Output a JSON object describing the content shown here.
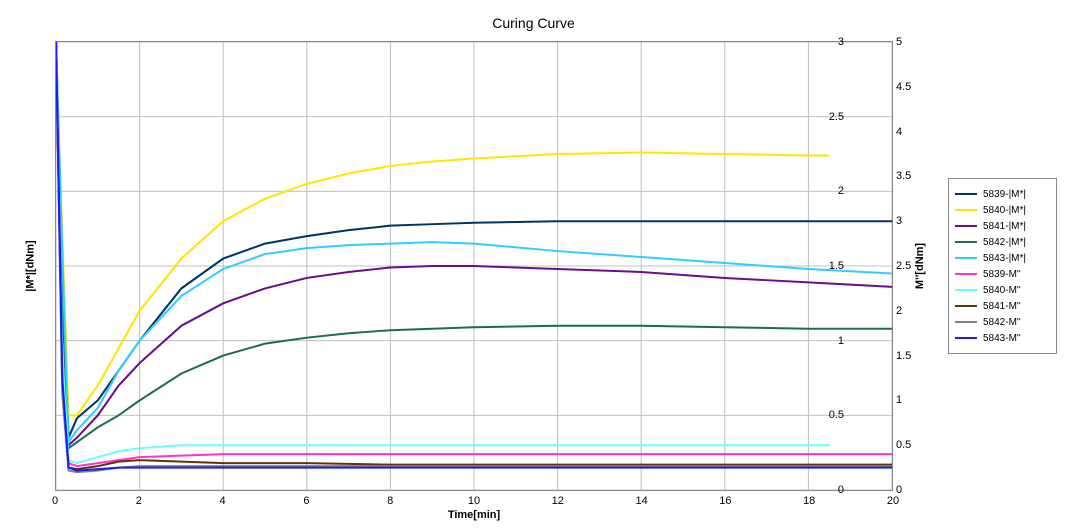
{
  "chart": {
    "type": "line",
    "title": "Curing Curve",
    "title_fontsize": 14,
    "background_color": "#ffffff",
    "grid_color": "#c0c0c0",
    "border_color": "#888888",
    "x_axis": {
      "label": "Time[min]",
      "min": 0,
      "max": 20,
      "ticks": [
        0,
        2,
        4,
        6,
        8,
        10,
        12,
        14,
        16,
        18,
        20
      ],
      "label_fontsize": 11
    },
    "y_axis_left": {
      "label": "|M*|[dNm]",
      "min": 0,
      "max": 3,
      "ticks": [
        0,
        0.5,
        1,
        1.5,
        2,
        2.5,
        3
      ],
      "label_fontsize": 11
    },
    "y_axis_right": {
      "label": "M''[dNm]",
      "min": 0,
      "max": 5,
      "ticks": [
        0,
        0.5,
        1,
        1.5,
        2,
        2.5,
        3,
        3.5,
        4,
        4.5,
        5
      ],
      "label_fontsize": 11
    },
    "legend_position": "right",
    "series": [
      {
        "name": "5839-|M*|",
        "color": "#003366",
        "axis": "left",
        "line_width": 2,
        "data": [
          [
            0,
            3
          ],
          [
            0.15,
            1.5
          ],
          [
            0.3,
            0.35
          ],
          [
            0.5,
            0.48
          ],
          [
            1,
            0.6
          ],
          [
            1.5,
            0.8
          ],
          [
            2,
            1.0
          ],
          [
            3,
            1.35
          ],
          [
            4,
            1.55
          ],
          [
            5,
            1.65
          ],
          [
            6,
            1.7
          ],
          [
            7,
            1.74
          ],
          [
            8,
            1.77
          ],
          [
            9,
            1.78
          ],
          [
            10,
            1.79
          ],
          [
            12,
            1.8
          ],
          [
            14,
            1.8
          ],
          [
            16,
            1.8
          ],
          [
            18,
            1.8
          ],
          [
            20,
            1.8
          ]
        ]
      },
      {
        "name": "5840-|M*|",
        "color": "#ffe600",
        "axis": "left",
        "line_width": 2,
        "data": [
          [
            0,
            3
          ],
          [
            0.15,
            1.7
          ],
          [
            0.3,
            0.5
          ],
          [
            0.5,
            0.5
          ],
          [
            1,
            0.7
          ],
          [
            1.5,
            0.95
          ],
          [
            2,
            1.2
          ],
          [
            3,
            1.55
          ],
          [
            4,
            1.8
          ],
          [
            5,
            1.95
          ],
          [
            6,
            2.05
          ],
          [
            7,
            2.12
          ],
          [
            8,
            2.17
          ],
          [
            9,
            2.2
          ],
          [
            10,
            2.22
          ],
          [
            12,
            2.25
          ],
          [
            14,
            2.26
          ],
          [
            16,
            2.25
          ],
          [
            18,
            2.24
          ],
          [
            18.5,
            2.24
          ]
        ]
      },
      {
        "name": "5841-|M*|",
        "color": "#6a0d8a",
        "axis": "left",
        "line_width": 2,
        "data": [
          [
            0,
            3
          ],
          [
            0.15,
            1.4
          ],
          [
            0.3,
            0.3
          ],
          [
            0.5,
            0.35
          ],
          [
            1,
            0.5
          ],
          [
            1.5,
            0.7
          ],
          [
            2,
            0.85
          ],
          [
            3,
            1.1
          ],
          [
            4,
            1.25
          ],
          [
            5,
            1.35
          ],
          [
            6,
            1.42
          ],
          [
            7,
            1.46
          ],
          [
            8,
            1.49
          ],
          [
            9,
            1.5
          ],
          [
            10,
            1.5
          ],
          [
            12,
            1.48
          ],
          [
            14,
            1.46
          ],
          [
            16,
            1.42
          ],
          [
            18,
            1.39
          ],
          [
            20,
            1.36
          ]
        ]
      },
      {
        "name": "5842-|M*|",
        "color": "#1a6b5a",
        "axis": "left",
        "line_width": 2,
        "data": [
          [
            0,
            3
          ],
          [
            0.15,
            1.3
          ],
          [
            0.3,
            0.28
          ],
          [
            0.5,
            0.32
          ],
          [
            1,
            0.42
          ],
          [
            1.5,
            0.5
          ],
          [
            2,
            0.6
          ],
          [
            3,
            0.78
          ],
          [
            4,
            0.9
          ],
          [
            5,
            0.98
          ],
          [
            6,
            1.02
          ],
          [
            7,
            1.05
          ],
          [
            8,
            1.07
          ],
          [
            9,
            1.08
          ],
          [
            10,
            1.09
          ],
          [
            12,
            1.1
          ],
          [
            14,
            1.1
          ],
          [
            16,
            1.09
          ],
          [
            18,
            1.08
          ],
          [
            20,
            1.08
          ]
        ]
      },
      {
        "name": "5843-|M*|",
        "color": "#33ccff",
        "axis": "left",
        "line_width": 2,
        "data": [
          [
            0,
            3
          ],
          [
            0.15,
            1.6
          ],
          [
            0.3,
            0.32
          ],
          [
            0.5,
            0.4
          ],
          [
            1,
            0.55
          ],
          [
            1.5,
            0.8
          ],
          [
            2,
            1.0
          ],
          [
            3,
            1.3
          ],
          [
            4,
            1.48
          ],
          [
            5,
            1.58
          ],
          [
            6,
            1.62
          ],
          [
            7,
            1.64
          ],
          [
            8,
            1.65
          ],
          [
            9,
            1.66
          ],
          [
            10,
            1.65
          ],
          [
            12,
            1.6
          ],
          [
            14,
            1.56
          ],
          [
            16,
            1.52
          ],
          [
            18,
            1.48
          ],
          [
            20,
            1.45
          ]
        ]
      },
      {
        "name": "5839-M''",
        "color": "#ff33cc",
        "axis": "left",
        "line_width": 2,
        "data": [
          [
            0,
            3
          ],
          [
            0.15,
            0.8
          ],
          [
            0.3,
            0.18
          ],
          [
            0.5,
            0.16
          ],
          [
            1,
            0.18
          ],
          [
            1.5,
            0.2
          ],
          [
            2,
            0.22
          ],
          [
            3,
            0.23
          ],
          [
            4,
            0.24
          ],
          [
            6,
            0.24
          ],
          [
            8,
            0.24
          ],
          [
            10,
            0.24
          ],
          [
            14,
            0.24
          ],
          [
            18,
            0.24
          ],
          [
            20,
            0.24
          ]
        ]
      },
      {
        "name": "5840-M''",
        "color": "#66ffff",
        "axis": "left",
        "line_width": 2,
        "data": [
          [
            0,
            3
          ],
          [
            0.15,
            0.9
          ],
          [
            0.3,
            0.2
          ],
          [
            0.5,
            0.18
          ],
          [
            1,
            0.22
          ],
          [
            1.5,
            0.26
          ],
          [
            2,
            0.28
          ],
          [
            3,
            0.3
          ],
          [
            4,
            0.3
          ],
          [
            6,
            0.3
          ],
          [
            8,
            0.3
          ],
          [
            10,
            0.3
          ],
          [
            14,
            0.3
          ],
          [
            18,
            0.3
          ],
          [
            18.5,
            0.3
          ]
        ]
      },
      {
        "name": "5841-M''",
        "color": "#663300",
        "axis": "left",
        "line_width": 2,
        "data": [
          [
            0,
            3
          ],
          [
            0.15,
            0.7
          ],
          [
            0.3,
            0.15
          ],
          [
            0.5,
            0.14
          ],
          [
            1,
            0.16
          ],
          [
            1.5,
            0.19
          ],
          [
            2,
            0.2
          ],
          [
            3,
            0.19
          ],
          [
            4,
            0.18
          ],
          [
            6,
            0.18
          ],
          [
            8,
            0.17
          ],
          [
            10,
            0.17
          ],
          [
            14,
            0.17
          ],
          [
            18,
            0.17
          ],
          [
            20,
            0.17
          ]
        ]
      },
      {
        "name": "5842-M''",
        "color": "#808080",
        "axis": "left",
        "line_width": 2,
        "data": [
          [
            0,
            3
          ],
          [
            0.15,
            0.65
          ],
          [
            0.3,
            0.13
          ],
          [
            0.5,
            0.12
          ],
          [
            1,
            0.13
          ],
          [
            1.5,
            0.15
          ],
          [
            2,
            0.16
          ],
          [
            3,
            0.16
          ],
          [
            4,
            0.16
          ],
          [
            6,
            0.16
          ],
          [
            8,
            0.16
          ],
          [
            10,
            0.16
          ],
          [
            14,
            0.16
          ],
          [
            18,
            0.16
          ],
          [
            20,
            0.16
          ]
        ]
      },
      {
        "name": "5843-M''",
        "color": "#1a1aff",
        "axis": "left",
        "line_width": 2,
        "data": [
          [
            0,
            3
          ],
          [
            0.15,
            0.75
          ],
          [
            0.3,
            0.15
          ],
          [
            0.5,
            0.13
          ],
          [
            1,
            0.14
          ],
          [
            1.5,
            0.15
          ],
          [
            2,
            0.15
          ],
          [
            3,
            0.15
          ],
          [
            4,
            0.15
          ],
          [
            6,
            0.15
          ],
          [
            8,
            0.15
          ],
          [
            10,
            0.15
          ],
          [
            14,
            0.15
          ],
          [
            18,
            0.15
          ],
          [
            20,
            0.15
          ]
        ]
      }
    ]
  }
}
